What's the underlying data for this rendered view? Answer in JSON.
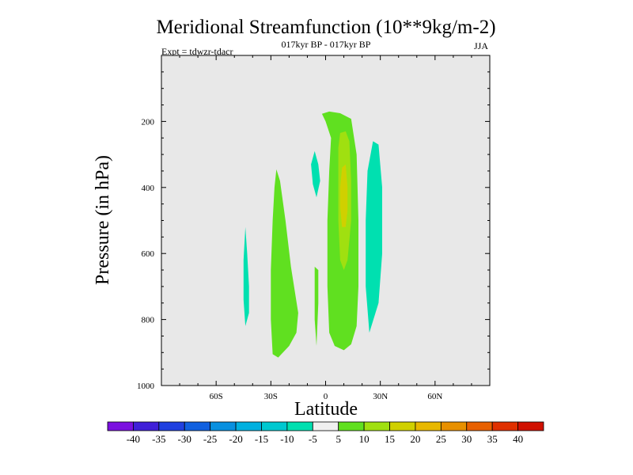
{
  "chart_data": {
    "type": "contour",
    "title": "Meridional Streamfunction (10**9kg/m-2)",
    "subtitle": "017kyr BP - 017kyr BP",
    "expt_label": "Expt = tdwzr-tdacr",
    "season": "JJA",
    "xlabel": "Latitude",
    "ylabel": "Pressure (in hPa)",
    "xlim": [
      -90,
      90
    ],
    "ylim": [
      1000,
      0
    ],
    "x_ticks": [
      {
        "value": -60,
        "label": "60S"
      },
      {
        "value": -30,
        "label": "30S"
      },
      {
        "value": 0,
        "label": "0"
      },
      {
        "value": 30,
        "label": "30N"
      },
      {
        "value": 60,
        "label": "60N"
      }
    ],
    "y_ticks": [
      {
        "value": 200,
        "label": "200"
      },
      {
        "value": 400,
        "label": "400"
      },
      {
        "value": 600,
        "label": "600"
      },
      {
        "value": 800,
        "label": "800"
      },
      {
        "value": 1000,
        "label": "1000"
      }
    ],
    "background_color": "#e8e8e8",
    "colorbar": {
      "labels": [
        "-40",
        "-35",
        "-30",
        "-25",
        "-20",
        "-15",
        "-10",
        "-5",
        "5",
        "10",
        "15",
        "20",
        "25",
        "30",
        "35",
        "40"
      ],
      "colors": [
        "#7b10e0",
        "#4020d8",
        "#2040e0",
        "#1060e0",
        "#0890e0",
        "#00b0e0",
        "#00c8d0",
        "#00e0b0",
        "#f0f0f0",
        "#60e020",
        "#a0e010",
        "#d0d000",
        "#e8b800",
        "#e89000",
        "#e86000",
        "#e03000",
        "#d01000"
      ]
    },
    "regions": [
      {
        "name": "tropical-north-positive",
        "level": "5 to 10",
        "color": "#60e020",
        "outline": [
          [
            -2,
            177
          ],
          [
            2,
            170
          ],
          [
            8,
            175
          ],
          [
            14,
            192
          ],
          [
            17,
            300
          ],
          [
            18,
            500
          ],
          [
            18,
            700
          ],
          [
            17,
            820
          ],
          [
            14,
            875
          ],
          [
            10,
            893
          ],
          [
            5,
            880
          ],
          [
            2,
            840
          ],
          [
            1,
            700
          ],
          [
            1,
            500
          ],
          [
            2,
            350
          ],
          [
            3,
            250
          ],
          [
            0,
            200
          ]
        ]
      },
      {
        "name": "tropical-north-core",
        "level": "10 to 15",
        "color": "#a0e010",
        "outline": [
          [
            8,
            235
          ],
          [
            11,
            230
          ],
          [
            13,
            260
          ],
          [
            14,
            380
          ],
          [
            14,
            500
          ],
          [
            12,
            620
          ],
          [
            10,
            650
          ],
          [
            8,
            620
          ],
          [
            7,
            500
          ],
          [
            7,
            380
          ],
          [
            7,
            280
          ]
        ]
      },
      {
        "name": "tropical-north-peak",
        "level": "15 to 20",
        "color": "#d0d000",
        "outline": [
          [
            9,
            340
          ],
          [
            11,
            330
          ],
          [
            12,
            400
          ],
          [
            12,
            470
          ],
          [
            11,
            520
          ],
          [
            9,
            520
          ],
          [
            8,
            460
          ],
          [
            8,
            400
          ]
        ]
      },
      {
        "name": "north-subtropical-negative",
        "level": "-10 to -5",
        "color": "#00e0b0",
        "outline": [
          [
            26,
            260
          ],
          [
            29,
            270
          ],
          [
            31,
            400
          ],
          [
            31,
            600
          ],
          [
            29,
            750
          ],
          [
            24,
            840
          ],
          [
            22,
            700
          ],
          [
            22,
            500
          ],
          [
            23,
            350
          ]
        ]
      },
      {
        "name": "south-subtropical-positive",
        "level": "5 to 10",
        "color": "#60e020",
        "outline": [
          [
            -27,
            345
          ],
          [
            -25,
            380
          ],
          [
            -22,
            500
          ],
          [
            -19,
            640
          ],
          [
            -15,
            780
          ],
          [
            -16,
            840
          ],
          [
            -20,
            880
          ],
          [
            -26,
            915
          ],
          [
            -29,
            905
          ],
          [
            -30,
            800
          ],
          [
            -30,
            650
          ],
          [
            -29,
            500
          ],
          [
            -28,
            400
          ]
        ]
      },
      {
        "name": "south-midlatitude-negative",
        "level": "-10 to -5",
        "color": "#00e0b0",
        "outline": [
          [
            -44,
            520
          ],
          [
            -43,
            600
          ],
          [
            -42,
            700
          ],
          [
            -42,
            780
          ],
          [
            -44,
            820
          ],
          [
            -45,
            740
          ],
          [
            -45,
            620
          ]
        ]
      },
      {
        "name": "equatorial-upper-negative",
        "level": "-10 to -5",
        "color": "#00e0b0",
        "outline": [
          [
            -6,
            290
          ],
          [
            -4,
            330
          ],
          [
            -3,
            380
          ],
          [
            -5,
            430
          ],
          [
            -7,
            390
          ],
          [
            -8,
            330
          ]
        ]
      },
      {
        "name": "equatorial-lower-positive",
        "level": "5 to 10",
        "color": "#60e020",
        "outline": [
          [
            -6,
            640
          ],
          [
            -4,
            650
          ],
          [
            -4,
            750
          ],
          [
            -5,
            880
          ],
          [
            -6,
            800
          ]
        ]
      }
    ]
  }
}
